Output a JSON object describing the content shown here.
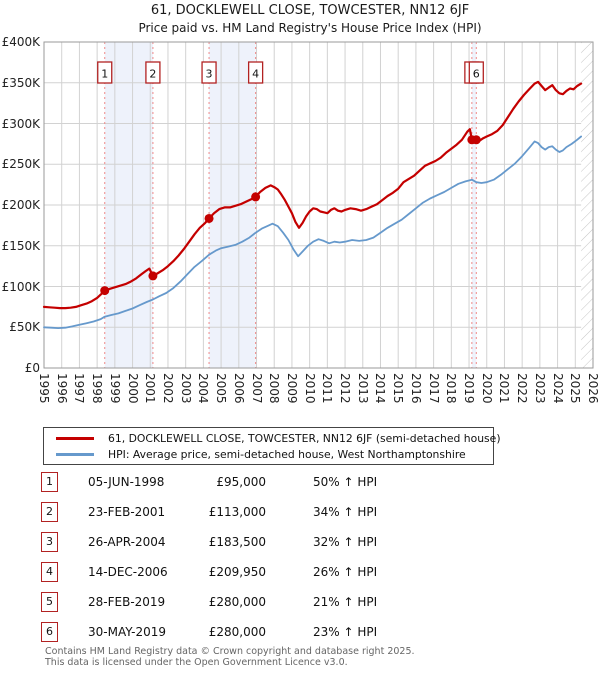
{
  "page": {
    "title": "61, DOCKLEWELL CLOSE, TOWCESTER, NN12 6JF",
    "subtitle": "Price paid vs. HM Land Registry's House Price Index (HPI)"
  },
  "footer": {
    "line1": "Contains HM Land Registry data © Crown copyright and database right 2025.",
    "line2": "This data is licensed under the Open Government Licence v3.0."
  },
  "chart_data": {
    "type": "line",
    "title": "61, DOCKLEWELL CLOSE, TOWCESTER, NN12 6JF",
    "subtitle": "Price paid vs. HM Land Registry's House Price Index (HPI)",
    "grid": true,
    "legend_position": "below",
    "colors": {
      "property": "#c40000",
      "hpi": "#6699cc",
      "sale_line": "#ee8888",
      "band": "#eef2fb",
      "gridline": "#d2d2d2",
      "frame": "#9a9a9a",
      "box_border": "#b22222",
      "hatch": "#c6c6c6"
    },
    "x_axis": {
      "min": 1995,
      "max": 2026,
      "tick_years": [
        1995,
        1996,
        1997,
        1998,
        1999,
        2000,
        2001,
        2002,
        2003,
        2004,
        2005,
        2006,
        2007,
        2008,
        2009,
        2010,
        2011,
        2012,
        2013,
        2014,
        2015,
        2016,
        2017,
        2018,
        2019,
        2020,
        2021,
        2022,
        2023,
        2024,
        2025,
        2026
      ]
    },
    "y_axis": {
      "min": 0,
      "max": 400000,
      "tick_values_k": [
        0,
        50,
        100,
        150,
        200,
        250,
        300,
        350,
        400
      ],
      "tick_labels": [
        "£0",
        "£50K",
        "£100K",
        "£150K",
        "£200K",
        "£250K",
        "£300K",
        "£350K",
        "£400K"
      ]
    },
    "hatch_start_year": 2025.33,
    "bands": [
      [
        1998.43,
        2001.15
      ],
      [
        2004.32,
        2006.95
      ],
      [
        2019.16,
        2019.41
      ]
    ],
    "series": [
      {
        "name": "61, DOCKLEWELL CLOSE, TOWCESTER, NN12 6JF (semi-detached house)",
        "color": "#c40000",
        "width": 2.2,
        "points": [
          [
            1995.0,
            75
          ],
          [
            1995.3,
            74.5
          ],
          [
            1995.6,
            74
          ],
          [
            1995.9,
            73.5
          ],
          [
            1996.2,
            73.5
          ],
          [
            1996.5,
            74
          ],
          [
            1996.8,
            75
          ],
          [
            1997.1,
            77
          ],
          [
            1997.4,
            79
          ],
          [
            1997.7,
            82
          ],
          [
            1998.0,
            86
          ],
          [
            1998.2,
            90
          ],
          [
            1998.43,
            95
          ],
          [
            1998.7,
            97
          ],
          [
            1999.0,
            99
          ],
          [
            1999.3,
            101
          ],
          [
            1999.6,
            103
          ],
          [
            1999.9,
            106
          ],
          [
            2000.2,
            110
          ],
          [
            2000.5,
            115
          ],
          [
            2000.75,
            119
          ],
          [
            2000.95,
            122
          ],
          [
            2001.15,
            113
          ],
          [
            2001.4,
            116
          ],
          [
            2001.7,
            120
          ],
          [
            2002.0,
            125
          ],
          [
            2002.3,
            131
          ],
          [
            2002.6,
            138
          ],
          [
            2002.9,
            146
          ],
          [
            2003.2,
            155
          ],
          [
            2003.5,
            164
          ],
          [
            2003.8,
            172
          ],
          [
            2004.1,
            178
          ],
          [
            2004.32,
            183.5
          ],
          [
            2004.6,
            190
          ],
          [
            2004.9,
            195
          ],
          [
            2005.2,
            197
          ],
          [
            2005.5,
            197
          ],
          [
            2005.8,
            199
          ],
          [
            2006.1,
            201
          ],
          [
            2006.4,
            204
          ],
          [
            2006.7,
            207
          ],
          [
            2006.95,
            210
          ],
          [
            2007.2,
            216
          ],
          [
            2007.5,
            221
          ],
          [
            2007.8,
            224
          ],
          [
            2008.0,
            222
          ],
          [
            2008.2,
            219
          ],
          [
            2008.4,
            213
          ],
          [
            2008.6,
            206
          ],
          [
            2008.8,
            198
          ],
          [
            2009.0,
            190
          ],
          [
            2009.2,
            179
          ],
          [
            2009.4,
            172
          ],
          [
            2009.6,
            178
          ],
          [
            2009.8,
            186
          ],
          [
            2010.0,
            192
          ],
          [
            2010.2,
            196
          ],
          [
            2010.4,
            195
          ],
          [
            2010.6,
            192
          ],
          [
            2010.8,
            191
          ],
          [
            2011.0,
            190
          ],
          [
            2011.2,
            194
          ],
          [
            2011.4,
            196
          ],
          [
            2011.6,
            193
          ],
          [
            2011.8,
            192
          ],
          [
            2012.0,
            194
          ],
          [
            2012.3,
            196
          ],
          [
            2012.6,
            195
          ],
          [
            2012.9,
            193
          ],
          [
            2013.2,
            195
          ],
          [
            2013.5,
            198
          ],
          [
            2013.8,
            201
          ],
          [
            2014.1,
            206
          ],
          [
            2014.4,
            211
          ],
          [
            2014.7,
            215
          ],
          [
            2015.0,
            220
          ],
          [
            2015.3,
            228
          ],
          [
            2015.6,
            232
          ],
          [
            2015.9,
            236
          ],
          [
            2016.2,
            242
          ],
          [
            2016.5,
            248
          ],
          [
            2016.8,
            251
          ],
          [
            2017.1,
            254
          ],
          [
            2017.4,
            258
          ],
          [
            2017.7,
            264
          ],
          [
            2018.0,
            269
          ],
          [
            2018.3,
            274
          ],
          [
            2018.6,
            280
          ],
          [
            2018.9,
            290
          ],
          [
            2019.05,
            293
          ],
          [
            2019.16,
            280
          ],
          [
            2019.41,
            280
          ],
          [
            2019.6,
            279
          ],
          [
            2019.8,
            282
          ],
          [
            2020.0,
            284
          ],
          [
            2020.3,
            287
          ],
          [
            2020.6,
            291
          ],
          [
            2020.9,
            298
          ],
          [
            2021.2,
            308
          ],
          [
            2021.5,
            318
          ],
          [
            2021.8,
            327
          ],
          [
            2022.1,
            335
          ],
          [
            2022.4,
            342
          ],
          [
            2022.7,
            349
          ],
          [
            2022.9,
            351
          ],
          [
            2023.1,
            346
          ],
          [
            2023.3,
            341
          ],
          [
            2023.5,
            344
          ],
          [
            2023.7,
            347
          ],
          [
            2023.9,
            341
          ],
          [
            2024.1,
            337
          ],
          [
            2024.3,
            336
          ],
          [
            2024.5,
            340
          ],
          [
            2024.7,
            343
          ],
          [
            2024.9,
            342
          ],
          [
            2025.1,
            346
          ],
          [
            2025.33,
            349
          ]
        ]
      },
      {
        "name": "HPI: Average price, semi-detached house, West Northamptonshire",
        "color": "#6699cc",
        "width": 1.8,
        "points": [
          [
            1995.0,
            50
          ],
          [
            1995.4,
            49.5
          ],
          [
            1995.8,
            49
          ],
          [
            1996.2,
            49.5
          ],
          [
            1996.6,
            51
          ],
          [
            1997.0,
            53
          ],
          [
            1997.4,
            55
          ],
          [
            1997.8,
            57
          ],
          [
            1998.2,
            60
          ],
          [
            1998.43,
            63
          ],
          [
            1998.8,
            65
          ],
          [
            1999.2,
            67
          ],
          [
            1999.6,
            70
          ],
          [
            2000.0,
            73
          ],
          [
            2000.4,
            77
          ],
          [
            2000.8,
            81
          ],
          [
            2001.15,
            84
          ],
          [
            2001.5,
            88
          ],
          [
            2001.9,
            92
          ],
          [
            2002.3,
            98
          ],
          [
            2002.7,
            106
          ],
          [
            2003.1,
            115
          ],
          [
            2003.5,
            124
          ],
          [
            2003.9,
            131
          ],
          [
            2004.32,
            139
          ],
          [
            2004.7,
            144
          ],
          [
            2005.0,
            147
          ],
          [
            2005.4,
            149
          ],
          [
            2005.8,
            151
          ],
          [
            2006.2,
            155
          ],
          [
            2006.6,
            160
          ],
          [
            2006.95,
            166
          ],
          [
            2007.3,
            171
          ],
          [
            2007.6,
            174
          ],
          [
            2007.9,
            177
          ],
          [
            2008.2,
            174
          ],
          [
            2008.5,
            166
          ],
          [
            2008.8,
            157
          ],
          [
            2009.1,
            145
          ],
          [
            2009.35,
            137
          ],
          [
            2009.6,
            143
          ],
          [
            2009.9,
            150
          ],
          [
            2010.2,
            155
          ],
          [
            2010.5,
            158
          ],
          [
            2010.8,
            156
          ],
          [
            2011.1,
            153
          ],
          [
            2011.4,
            155
          ],
          [
            2011.7,
            154
          ],
          [
            2012.0,
            155
          ],
          [
            2012.4,
            157
          ],
          [
            2012.8,
            156
          ],
          [
            2013.2,
            157
          ],
          [
            2013.6,
            160
          ],
          [
            2014.0,
            166
          ],
          [
            2014.4,
            172
          ],
          [
            2014.8,
            177
          ],
          [
            2015.2,
            182
          ],
          [
            2015.6,
            189
          ],
          [
            2016.0,
            196
          ],
          [
            2016.4,
            203
          ],
          [
            2016.8,
            208
          ],
          [
            2017.2,
            212
          ],
          [
            2017.6,
            216
          ],
          [
            2018.0,
            221
          ],
          [
            2018.4,
            226
          ],
          [
            2018.8,
            229
          ],
          [
            2019.16,
            231
          ],
          [
            2019.41,
            228
          ],
          [
            2019.7,
            227
          ],
          [
            2020.0,
            228
          ],
          [
            2020.4,
            231
          ],
          [
            2020.8,
            237
          ],
          [
            2021.2,
            244
          ],
          [
            2021.6,
            251
          ],
          [
            2022.0,
            260
          ],
          [
            2022.4,
            270
          ],
          [
            2022.7,
            278
          ],
          [
            2022.9,
            276
          ],
          [
            2023.1,
            271
          ],
          [
            2023.3,
            268
          ],
          [
            2023.5,
            271
          ],
          [
            2023.7,
            272
          ],
          [
            2023.9,
            268
          ],
          [
            2024.1,
            265
          ],
          [
            2024.3,
            267
          ],
          [
            2024.5,
            271
          ],
          [
            2024.8,
            275
          ],
          [
            2025.1,
            280
          ],
          [
            2025.33,
            284
          ]
        ]
      }
    ],
    "sales": [
      {
        "label": "1",
        "year": 1998.43,
        "price_k": 95,
        "date": "05-JUN-1998",
        "price": "£95,000",
        "vs_hpi": "50% ↑ HPI"
      },
      {
        "label": "2",
        "year": 2001.15,
        "price_k": 113,
        "date": "23-FEB-2001",
        "price": "£113,000",
        "vs_hpi": "34% ↑ HPI"
      },
      {
        "label": "3",
        "year": 2004.32,
        "price_k": 183.5,
        "date": "26-APR-2004",
        "price": "£183,500",
        "vs_hpi": "32% ↑ HPI"
      },
      {
        "label": "4",
        "year": 2006.95,
        "price_k": 209.95,
        "date": "14-DEC-2006",
        "price": "£209,950",
        "vs_hpi": "26% ↑ HPI"
      },
      {
        "label": "5",
        "year": 2019.16,
        "price_k": 280,
        "date": "28-FEB-2019",
        "price": "£280,000",
        "vs_hpi": "21% ↑ HPI"
      },
      {
        "label": "6",
        "year": 2019.41,
        "price_k": 280,
        "date": "30-MAY-2019",
        "price": "£280,000",
        "vs_hpi": "23% ↑ HPI"
      }
    ]
  }
}
